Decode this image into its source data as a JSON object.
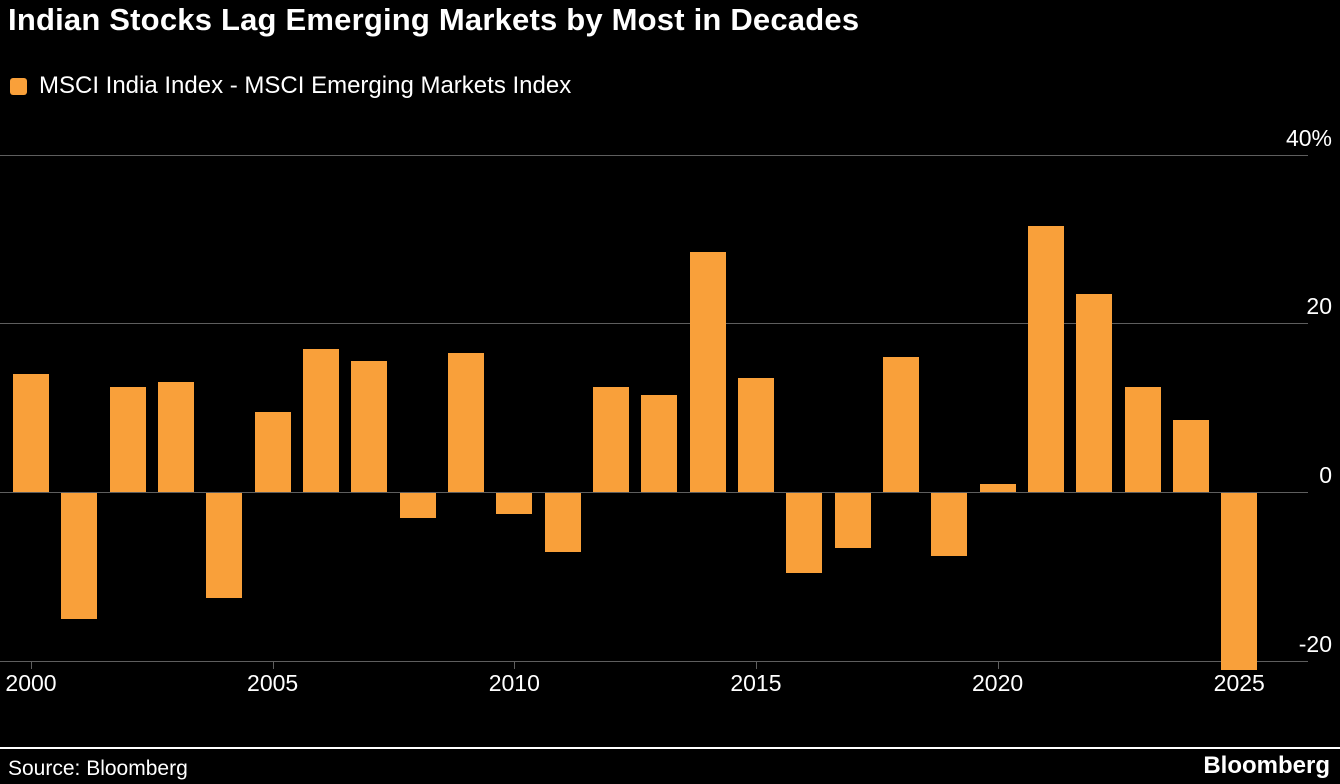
{
  "header": {
    "title": "Indian Stocks Lag Emerging Markets by Most in Decades",
    "legend_label": "MSCI India Index - MSCI Emerging Markets Index"
  },
  "colors": {
    "accent": "#F9A03A",
    "background": "#000000",
    "gridline": "#5e5e5e",
    "text": "#ffffff"
  },
  "footer": {
    "source": "Source: Bloomberg",
    "brand": "Bloomberg"
  },
  "chart_data": {
    "type": "bar",
    "title": "Indian Stocks Lag Emerging Markets by Most in Decades",
    "legend": [
      "MSCI India Index - MSCI Emerging Markets Index"
    ],
    "xlabel": "",
    "ylabel": "",
    "ylim": [
      -25,
      45
    ],
    "grid": true,
    "legend_position": "top-left",
    "categories": [
      "2000",
      "2001",
      "2002",
      "2003",
      "2004",
      "2005",
      "2006",
      "2007",
      "2008",
      "2009",
      "2010",
      "2011",
      "2012",
      "2013",
      "2014",
      "2015",
      "2016",
      "2017",
      "2018",
      "2019",
      "2020",
      "2021",
      "2022",
      "2023",
      "2024",
      "2025"
    ],
    "values": [
      14,
      -15,
      12.5,
      13,
      -12.5,
      9.5,
      17,
      15.5,
      -3,
      16.5,
      -2.5,
      -7,
      12.5,
      11.5,
      28.5,
      13.5,
      -9.5,
      -6.5,
      16,
      -7.5,
      1,
      31.5,
      23.5,
      12.5,
      8.5,
      -21
    ],
    "y_ticks": [
      {
        "value": 40,
        "label": "40%"
      },
      {
        "value": 20,
        "label": "20"
      },
      {
        "value": 0,
        "label": "0"
      },
      {
        "value": -20,
        "label": "-20"
      }
    ],
    "x_ticks": [
      "2000",
      "2005",
      "2010",
      "2015",
      "2020",
      "2025"
    ]
  }
}
